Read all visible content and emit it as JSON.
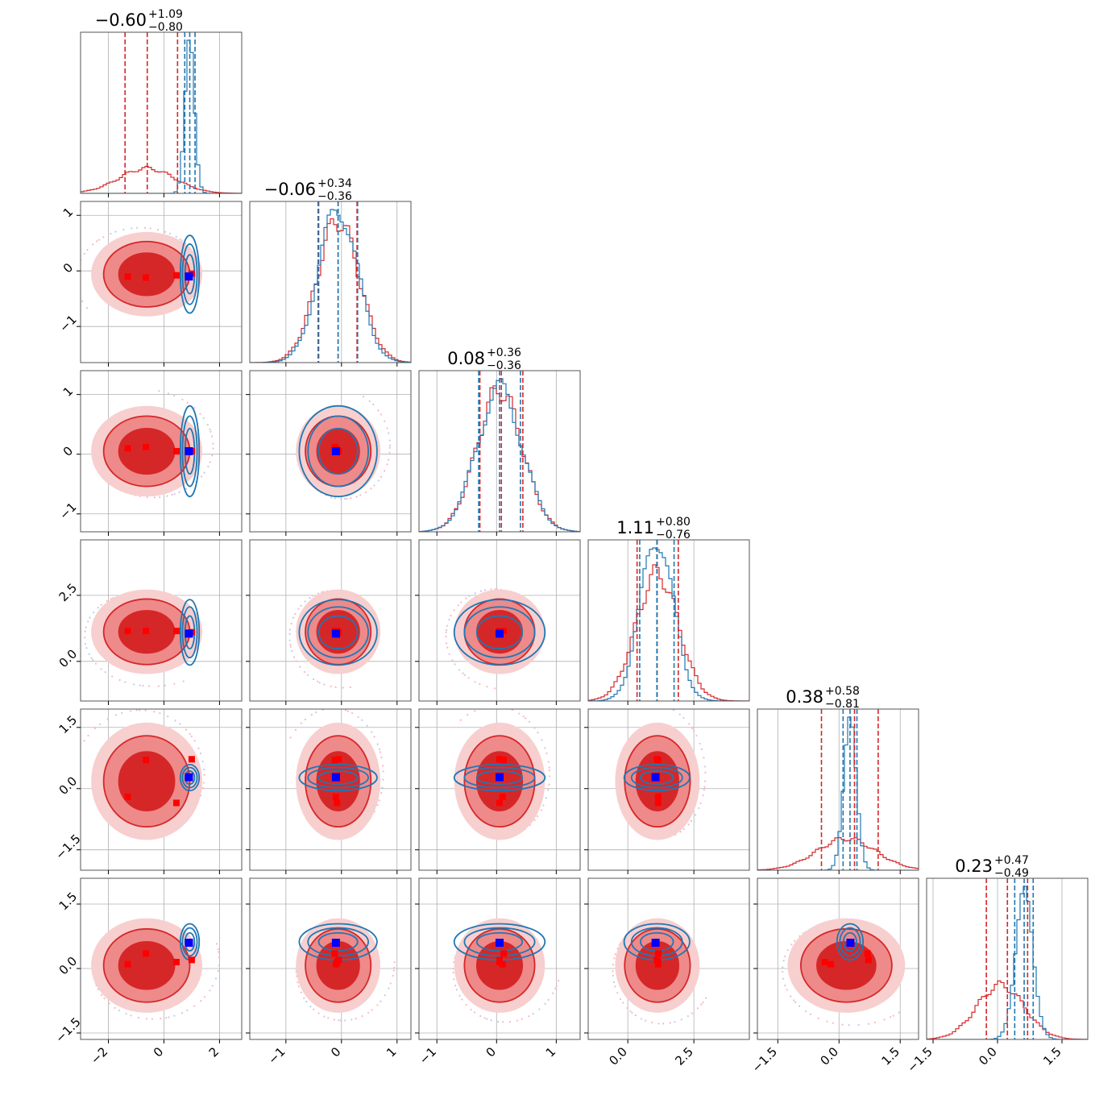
{
  "chart_data": {
    "type": "corner",
    "n_params": 6,
    "grid": true,
    "colors": {
      "prior": "#d62728",
      "posterior": "#1f77b4",
      "truth": "#0000ff",
      "markers": "#ff0000",
      "grid": "#b0b0b0"
    },
    "titles": [
      {
        "value": "-0.60",
        "plus": "+1.09",
        "minus": "-0.80"
      },
      {
        "value": "-0.06",
        "plus": "+0.34",
        "minus": "-0.36"
      },
      {
        "value": "0.08",
        "plus": "+0.36",
        "minus": "-0.36"
      },
      {
        "value": "1.11",
        "plus": "+0.80",
        "minus": "-0.76"
      },
      {
        "value": "0.38",
        "plus": "+0.58",
        "minus": "-0.81"
      },
      {
        "value": "0.23",
        "plus": "+0.47",
        "minus": "-0.49"
      }
    ],
    "axes": [
      {
        "range": [
          -3.0,
          2.8
        ],
        "ticks": [
          -2,
          0,
          2
        ],
        "tick_labels": [
          "-2",
          "0",
          "2"
        ]
      },
      {
        "range": [
          -1.65,
          1.25
        ],
        "ticks": [
          -1,
          0,
          1
        ],
        "tick_labels": [
          "-1",
          "0",
          "1"
        ]
      },
      {
        "range": [
          -1.3,
          1.4
        ],
        "ticks": [
          -1,
          0,
          1
        ],
        "tick_labels": [
          "-1",
          "0",
          "1"
        ]
      },
      {
        "range": [
          -1.5,
          4.6
        ],
        "ticks": [
          0.0,
          2.5
        ],
        "tick_labels": [
          "0.0",
          "2.5"
        ]
      },
      {
        "range": [
          -2.0,
          1.95
        ],
        "ticks": [
          -1.5,
          0.0,
          1.5
        ],
        "tick_labels": [
          "-1.5",
          "0.0",
          "1.5"
        ]
      },
      {
        "range": [
          -1.65,
          2.1
        ],
        "ticks": [
          -1.5,
          0.0,
          1.5
        ],
        "tick_labels": [
          "-1.5",
          "0.0",
          "1.5"
        ]
      }
    ],
    "prior": {
      "mean": [
        -0.62,
        -0.06,
        0.05,
        1.12,
        0.18,
        0.07
      ],
      "sd": [
        1.0,
        0.38,
        0.38,
        0.8,
        0.72,
        0.55
      ],
      "quantiles": [
        [
          -1.4,
          -0.6,
          0.49
        ],
        [
          -0.42,
          -0.06,
          0.28
        ],
        [
          -0.28,
          0.08,
          0.44
        ],
        [
          0.35,
          1.11,
          1.91
        ],
        [
          -0.43,
          0.38,
          0.96
        ],
        [
          -0.26,
          0.23,
          0.7
        ]
      ]
    },
    "posterior": {
      "mean": [
        0.93,
        -0.06,
        0.05,
        1.1,
        0.27,
        0.62
      ],
      "sd": [
        0.17,
        0.35,
        0.38,
        0.62,
        0.16,
        0.21
      ],
      "quantiles": [
        [
          0.75,
          0.93,
          1.12
        ],
        [
          -0.41,
          -0.06,
          0.29
        ],
        [
          -0.3,
          0.05,
          0.4
        ],
        [
          0.45,
          1.1,
          1.75
        ],
        [
          0.1,
          0.27,
          0.44
        ],
        [
          0.4,
          0.62,
          0.83
        ]
      ]
    },
    "truth": [
      0.9,
      -0.1,
      0.05,
      1.05,
      0.28,
      0.6
    ],
    "red_markers": [
      [
        -1.3,
        -0.1,
        0.1,
        1.15,
        -0.2,
        0.1
      ],
      [
        -0.65,
        -0.12,
        0.12,
        1.15,
        0.7,
        0.35
      ],
      [
        0.45,
        -0.08,
        0.05,
        1.15,
        -0.35,
        0.15
      ],
      [
        1.0,
        -0.05,
        0.05,
        1.1,
        0.72,
        0.2
      ]
    ]
  }
}
